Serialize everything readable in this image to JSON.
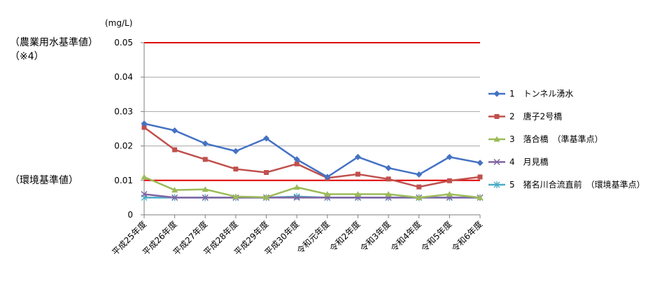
{
  "chart_data": {
    "type": "line",
    "unit_label": "(mg/L)",
    "categories": [
      "平成25年度",
      "平成26年度",
      "平成27年度",
      "平成28年度",
      "平成29年度",
      "平成30年度",
      "令和元年度",
      "令和2年度",
      "令和3年度",
      "令和4年度",
      "令和5年度",
      "令和6年度"
    ],
    "ylim": [
      0,
      0.05
    ],
    "yticks": [
      "0",
      "0.01",
      "0.02",
      "0.03",
      "0.04",
      "0.05"
    ],
    "grid": true,
    "legend_position": "right",
    "reference_lines": [
      {
        "label_lines": [
          "（農業用水基準値）",
          "（※4）"
        ],
        "value": 0.05,
        "color": "#e00000"
      },
      {
        "label_lines": [
          "（環境基準値）"
        ],
        "value": 0.01,
        "color": "#e00000"
      }
    ],
    "series": [
      {
        "name": "1　トンネル湧水",
        "color": "#4472c4",
        "marker": "diamond",
        "values": [
          0.0265,
          0.0245,
          0.0207,
          0.0185,
          0.0222,
          0.0161,
          0.011,
          0.0168,
          0.0136,
          0.0117,
          0.0168,
          0.0151
        ]
      },
      {
        "name": "2　唐子2号橋",
        "color": "#c0504d",
        "marker": "square",
        "values": [
          0.0254,
          0.0189,
          0.0161,
          0.0133,
          0.0123,
          0.0148,
          0.0107,
          0.0118,
          0.0104,
          0.0081,
          0.0099,
          0.011
        ]
      },
      {
        "name": "3　落合橋　（準基準点）",
        "color": "#9bbb59",
        "marker": "triangle",
        "values": [
          0.011,
          0.0072,
          0.0074,
          0.0053,
          0.0051,
          0.008,
          0.006,
          0.006,
          0.006,
          0.005,
          0.006,
          0.005
        ]
      },
      {
        "name": "4　月見橋",
        "color": "#8064a2",
        "marker": "x",
        "values": [
          0.006,
          0.005,
          0.005,
          0.005,
          0.005,
          0.005,
          0.005,
          0.005,
          0.005,
          0.005,
          0.005,
          0.005
        ]
      },
      {
        "name": "5　猪名川合流直前　（環境基準点）",
        "color": "#4bacc6",
        "marker": "asterisk",
        "values": [
          0.005,
          0.005,
          0.005,
          0.005,
          0.005,
          0.0053,
          0.005,
          0.005,
          0.005,
          0.005,
          0.005,
          0.005
        ]
      }
    ]
  }
}
